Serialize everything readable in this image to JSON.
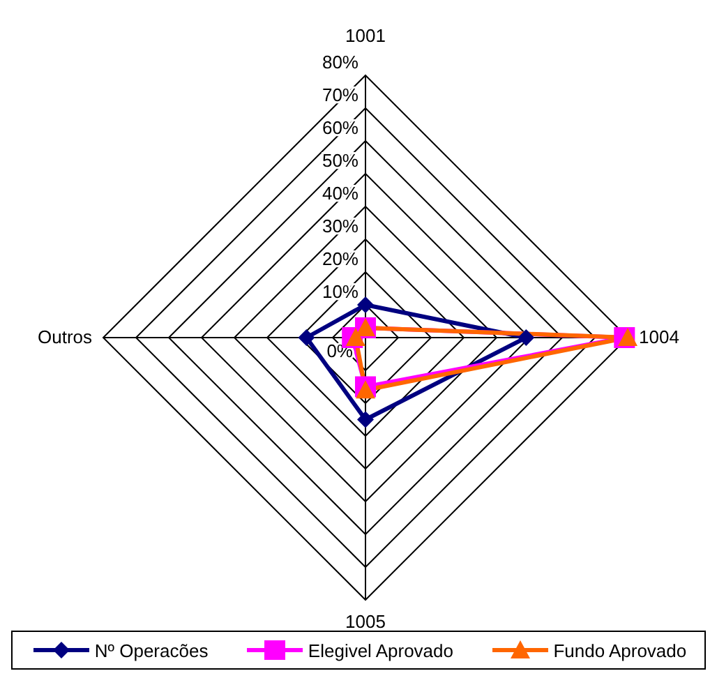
{
  "chart_data": {
    "type": "radar",
    "categories": [
      "1001",
      "1004",
      "1005",
      "Outros"
    ],
    "series": [
      {
        "name": "Nº Operacões",
        "color": "#000080",
        "marker": "diamond",
        "values": [
          10,
          49,
          25,
          18
        ]
      },
      {
        "name": "Elegivel Aprovado",
        "color": "#ff00ff",
        "marker": "square",
        "values": [
          3,
          79,
          15,
          4
        ]
      },
      {
        "name": "Fundo Aprovado",
        "color": "#ff6600",
        "marker": "triangle",
        "values": [
          3,
          80,
          16,
          3
        ]
      }
    ],
    "ylim": [
      0,
      80
    ],
    "yticks": [
      {
        "value": 0,
        "label": "0%"
      },
      {
        "value": 10,
        "label": "10%"
      },
      {
        "value": 20,
        "label": "20%"
      },
      {
        "value": 30,
        "label": "30%"
      },
      {
        "value": 40,
        "label": "40%"
      },
      {
        "value": 50,
        "label": "50%"
      },
      {
        "value": 60,
        "label": "60%"
      },
      {
        "value": 70,
        "label": "70%"
      },
      {
        "value": 80,
        "label": "80%"
      }
    ],
    "grid": true,
    "legend": "bottom"
  }
}
